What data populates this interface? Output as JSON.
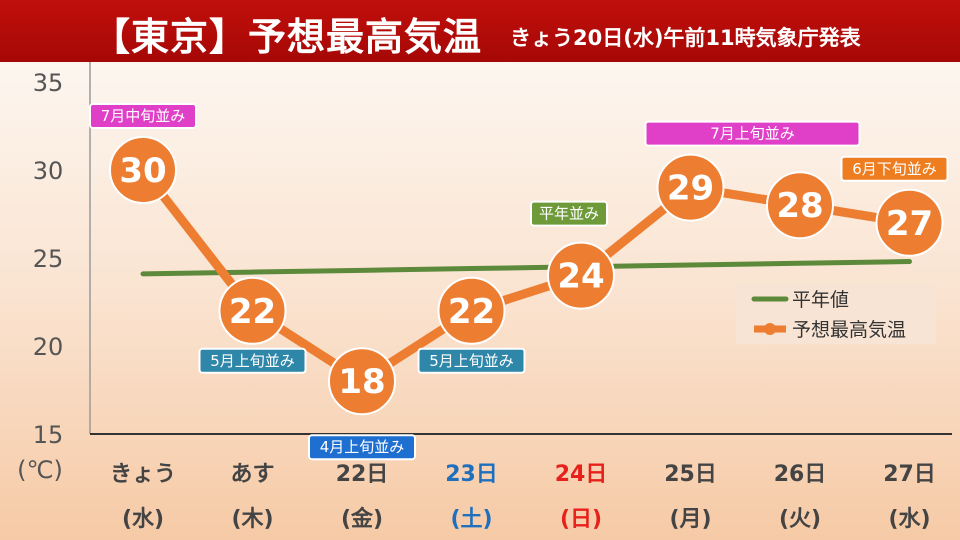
{
  "header": {
    "title": "【東京】予想最高気温",
    "subtitle": "きょう20日(水)午前11時気象庁発表"
  },
  "chart_data": {
    "type": "line",
    "title": "【東京】予想最高気温",
    "subtitle": "きょう20日(水)午前11時気象庁発表",
    "ylabel": "(℃)",
    "ylim": [
      15,
      35
    ],
    "y_ticks": [
      15,
      20,
      25,
      30,
      35
    ],
    "categories": [
      "きょう",
      "あす",
      "22日",
      "23日",
      "24日",
      "25日",
      "26日",
      "27日"
    ],
    "weekdays": [
      "(水)",
      "(木)",
      "(金)",
      "(土)",
      "(日)",
      "(月)",
      "(火)",
      "(水)"
    ],
    "category_colors": [
      "#444444",
      "#444444",
      "#444444",
      "#1f6fbf",
      "#e8201b",
      "#444444",
      "#444444",
      "#444444"
    ],
    "grid": false,
    "legend_position": "right",
    "series": [
      {
        "name": "平年値",
        "values": [
          24.1,
          24.2,
          24.3,
          24.4,
          24.5,
          24.6,
          24.7,
          24.8
        ],
        "color": "#5c8a3a"
      },
      {
        "name": "予想最高気温",
        "values": [
          30,
          22,
          18,
          22,
          24,
          29,
          28,
          27
        ],
        "color": "#ed7d31"
      }
    ],
    "annotations": [
      {
        "text": "7月中旬並み",
        "index": 0,
        "value": 30,
        "color": "#e040c8"
      },
      {
        "text": "5月上旬並み",
        "index": 1,
        "value": 22,
        "color": "#2e86a8"
      },
      {
        "text": "4月上旬並み",
        "index": 2,
        "value": 18,
        "color": "#1f6fd1"
      },
      {
        "text": "5月上旬並み",
        "index": 3,
        "value": 22,
        "color": "#2e86a8"
      },
      {
        "text": "平年並み",
        "index": 4,
        "value": 24,
        "color": "#6f9a3a"
      },
      {
        "text": "7月上旬並み",
        "index": 5,
        "value": 29,
        "color": "#e040c8"
      },
      {
        "text": "6月下旬並み",
        "index": 7,
        "value": 27,
        "color": "#ed7d1f"
      }
    ]
  }
}
